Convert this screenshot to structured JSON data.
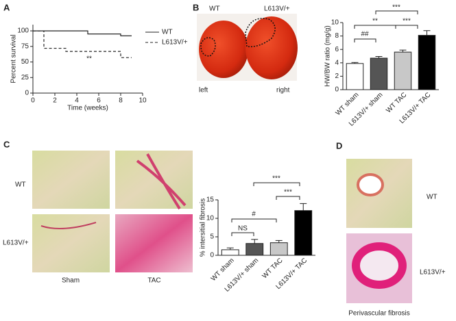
{
  "panel_labels": [
    "A",
    "B",
    "C",
    "D"
  ],
  "images": {
    "heart": {
      "labels": [
        "WT",
        "L613V/+"
      ],
      "sides": [
        "left",
        "right"
      ]
    },
    "interstitial": {
      "rows": [
        "WT",
        "L613V/+"
      ],
      "columns": [
        "Sham",
        "TAC"
      ]
    },
    "perivascular": {
      "rows": [
        "WT",
        "L613V/+"
      ],
      "caption": "Perivascular fibrosis"
    }
  },
  "chart_data": [
    {
      "type": "line",
      "xlabel": "Time (weeks)",
      "ylabel": "Percent survival",
      "xlim": [
        0,
        10
      ],
      "xticks": [
        0,
        2,
        4,
        6,
        8,
        10
      ],
      "ylim": [
        0,
        110
      ],
      "yticks": [
        0,
        25,
        50,
        75,
        100
      ],
      "series": [
        {
          "name": "WT",
          "color": "#222222",
          "x": [
            0,
            5,
            5,
            8,
            8,
            9
          ],
          "values": [
            100,
            100,
            95,
            95,
            92,
            92
          ]
        },
        {
          "name": "L613V/+",
          "color": "#222222",
          "dashed": true,
          "x": [
            0,
            1,
            1,
            3,
            3,
            8,
            8,
            9
          ],
          "values": [
            100,
            100,
            72,
            72,
            67,
            67,
            57,
            57
          ]
        }
      ],
      "annotations": [
        "**"
      ]
    },
    {
      "type": "bar",
      "ylabel": "HW/BW ratio (mg/g)",
      "categories": [
        "WT sham",
        "L613V/+ sham",
        "WT TAC",
        "L613V/+ TAC"
      ],
      "values": [
        3.9,
        4.7,
        5.6,
        8.1
      ],
      "errors": [
        0.15,
        0.25,
        0.3,
        0.7
      ],
      "colors": [
        "#ffffff",
        "#555555",
        "#c8c8c8",
        "#000000"
      ],
      "ylim": [
        0,
        10
      ],
      "yticks": [
        0,
        2,
        4,
        6,
        8,
        10
      ],
      "annotations": [
        "##",
        "**",
        "***",
        "***"
      ]
    },
    {
      "type": "bar",
      "ylabel": "% intersitial fibrosis",
      "categories": [
        "WT sham",
        "L613V/+ sham",
        "WT TAC",
        "L613V/+ TAC"
      ],
      "values": [
        1.5,
        3.2,
        3.4,
        12.1
      ],
      "errors": [
        0.5,
        1.1,
        0.6,
        1.9
      ],
      "colors": [
        "#ffffff",
        "#555555",
        "#c8c8c8",
        "#000000"
      ],
      "ylim": [
        0,
        15
      ],
      "yticks": [
        0,
        5,
        10,
        15
      ],
      "annotations": [
        "NS",
        "#",
        "***",
        "***"
      ]
    }
  ]
}
